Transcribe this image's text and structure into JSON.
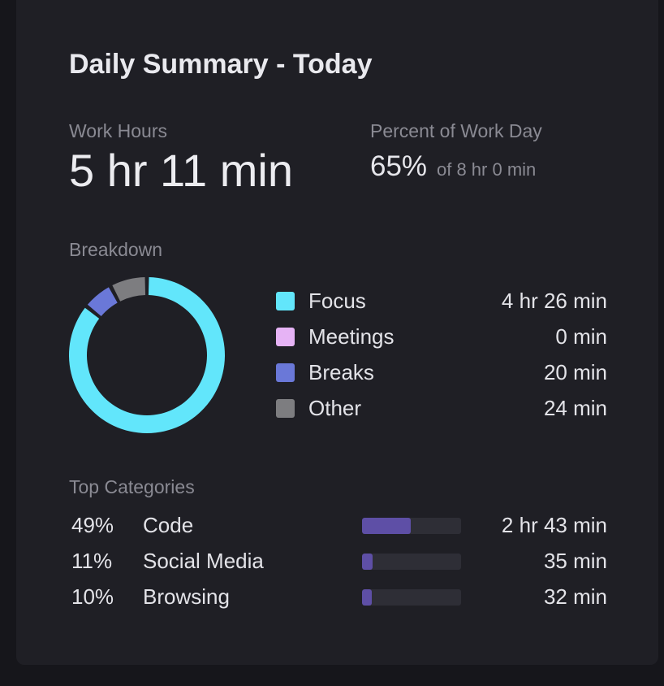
{
  "header": {
    "title": "Daily Summary - Today"
  },
  "work_hours": {
    "label": "Work Hours",
    "value": "5 hr 11 min"
  },
  "percent_work_day": {
    "label": "Percent of Work Day",
    "value": "65%",
    "of_text": "of 8 hr 0 min"
  },
  "breakdown": {
    "label": "Breakdown",
    "items": [
      {
        "label": "Focus",
        "value": "4 hr 26 min",
        "minutes": 266,
        "color": "#62e6fb"
      },
      {
        "label": "Meetings",
        "value": "0 min",
        "minutes": 0,
        "color": "#e6b3f5"
      },
      {
        "label": "Breaks",
        "value": "20 min",
        "minutes": 20,
        "color": "#6a78d8"
      },
      {
        "label": "Other",
        "value": "24 min",
        "minutes": 24,
        "color": "#7d7d80"
      }
    ]
  },
  "top_categories": {
    "label": "Top Categories",
    "bar_color": "#5e4fa6",
    "items": [
      {
        "percent": "49%",
        "name": "Code",
        "time": "2 hr 43 min",
        "fraction": 0.49
      },
      {
        "percent": "11%",
        "name": "Social Media",
        "time": "35 min",
        "fraction": 0.11
      },
      {
        "percent": "10%",
        "name": "Browsing",
        "time": "32 min",
        "fraction": 0.1
      }
    ]
  }
}
